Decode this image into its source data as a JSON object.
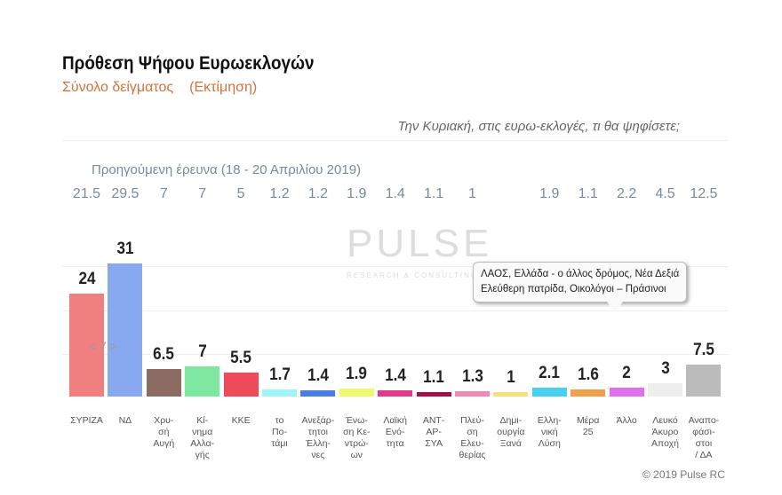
{
  "header": {
    "title": "Πρόθεση Ψήφου Ευρωεκλογών",
    "subtitle": "Σύνολο δείγματος",
    "subtitle_note": "(Εκτίμηση)",
    "question": "Την Κυριακή, στις ευρω-εκλογές, τι θα ψηφίσετε;"
  },
  "watermark": {
    "name": "PULSE",
    "tagline": "RESEARCH & CONSULTING"
  },
  "tooltip": {
    "line1": "ΛΑΟΣ, Ελλάδα - ο άλλος δρόμος, Νέα Δεξιά",
    "line2": "Ελεύθερη πατρίδα, Οικολόγοι – Πράσινοι"
  },
  "nav": {
    "label": "< 7 >"
  },
  "copyright": "© 2019 Pulse RC",
  "chart_data": {
    "type": "bar",
    "title": "Πρόθεση Ψήφου Ευρωεκλογών",
    "ylim": [
      0,
      33
    ],
    "previous_label": "Προηγούμενη έρευνα   (18 - 20 Απριλίου 2019)",
    "categories": [
      "ΣΥΡΙΖΑ",
      "ΝΔ",
      "Χρυ-\nσή\nΑυγή",
      "Κί-\nνημα\nΑλλα-\nγής",
      "ΚΚΕ",
      "το\nΠο-\nτάμι",
      "Ανεξάρ-\nτητοι\nΈλλη-\nνες",
      "Ένω-\nση Κε-\nντρώ-\nων",
      "Λαϊκή\nΕνό-\nτητα",
      "ΑΝΤ-\nΑΡ-\nΣΥΑ",
      "Πλεύ-\nση\nΕλευ-\nθερίας",
      "Δημι-\nουργία\nΞανά",
      "Ελλη-\nνική\nΛύση",
      "Μέρα\n25",
      "Άλλο",
      "Λευκό\nΆκυρο\nΑποχή",
      "Αναπο-\nφάσι-\nστοι\n/ ΔΑ"
    ],
    "values": [
      24,
      31,
      6.5,
      7,
      5.5,
      1.7,
      1.4,
      1.9,
      1.4,
      1.1,
      1.3,
      1,
      2.1,
      1.6,
      2,
      3,
      7.5
    ],
    "previous": [
      "21.5",
      "29.5",
      "7",
      "7",
      "5",
      "1.2",
      "1.2",
      "1.9",
      "1.4",
      "1.1",
      "1",
      "",
      "1.9",
      "1.1",
      "2.2",
      "4.5",
      "12.5"
    ],
    "colors": [
      "#f08080",
      "#88a8f0",
      "#8c6b62",
      "#7ee8a0",
      "#ee4b5a",
      "#a0f4f8",
      "#4a7ee0",
      "#f0f870",
      "#e03a8a",
      "#a0104a",
      "#f088b8",
      "#f8e080",
      "#48d0f0",
      "#f0a048",
      "#e070f0",
      "#eeeeee",
      "#bbbbbb"
    ]
  }
}
